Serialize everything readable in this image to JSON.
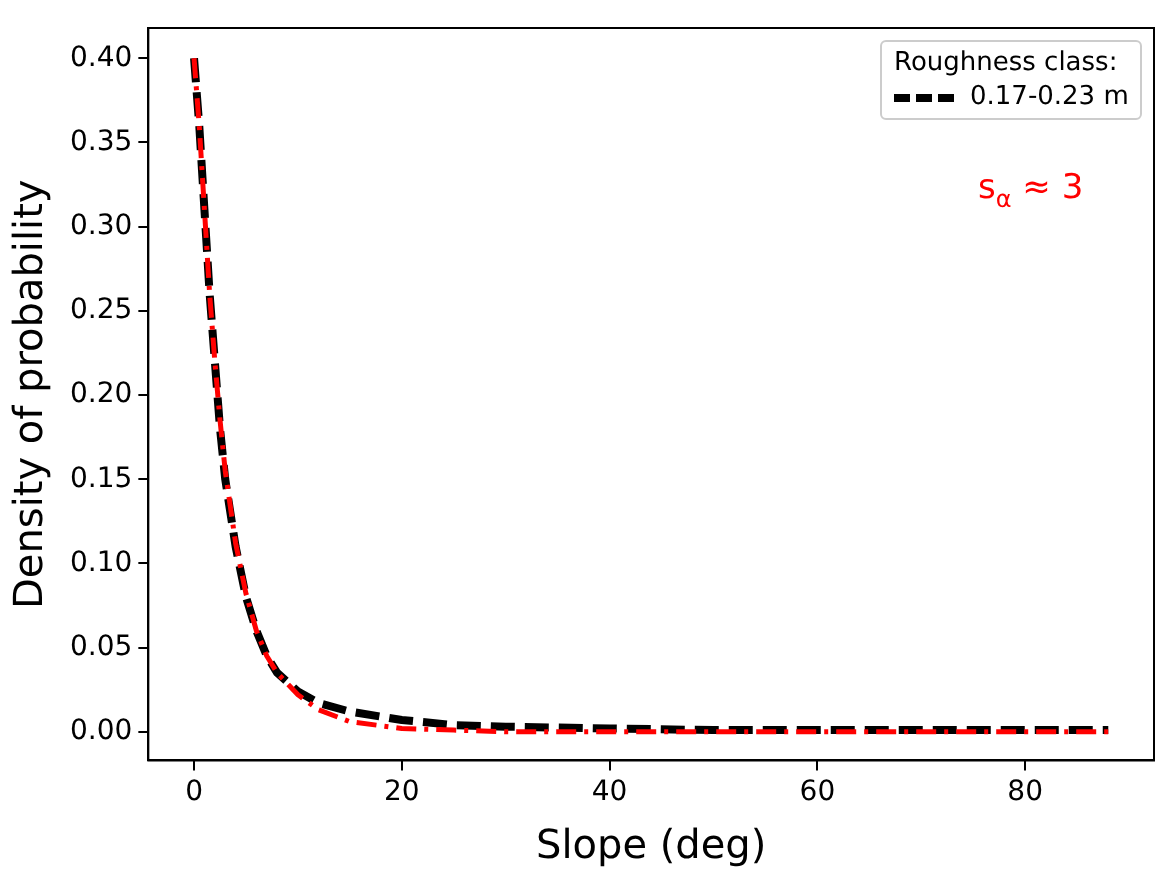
{
  "chart_data": {
    "type": "line",
    "xlabel": "Slope (deg)",
    "ylabel": "Density of probability",
    "legend_title": "Roughness class:",
    "legend": "top right",
    "grid": false,
    "marker": "none",
    "xlim": [
      -4.4,
      92.4
    ],
    "xticks": [
      0,
      20,
      40,
      60,
      80
    ],
    "ylim": [
      -0.017,
      0.418
    ],
    "yticks": [
      {
        "value": 0,
        "label": "0.00"
      },
      {
        "value": 0.05,
        "label": "0.05"
      },
      {
        "value": 0.1,
        "label": "0.10"
      },
      {
        "value": 0.15,
        "label": "0.15"
      },
      {
        "value": 0.2,
        "label": "0.20"
      },
      {
        "value": 0.25,
        "label": "0.25"
      },
      {
        "value": 0.3,
        "label": "0.30"
      },
      {
        "value": 0.35,
        "label": "0.35"
      },
      {
        "value": 0.4,
        "label": "0.40"
      }
    ],
    "annotations": [
      "s$_{α}$ ≈ 3"
    ],
    "series": [
      {
        "name": "0.17-0.23 m",
        "color": "#000000",
        "line_style": "dashed",
        "x": [
          0,
          0.5,
          1,
          1.5,
          2,
          2.5,
          3,
          4,
          5,
          6,
          7,
          8,
          10,
          12,
          15,
          20,
          25,
          30,
          40,
          50,
          60,
          70,
          88
        ],
        "values": [
          0.4,
          0.36,
          0.31,
          0.26,
          0.22,
          0.18,
          0.15,
          0.11,
          0.08,
          0.06,
          0.045,
          0.035,
          0.024,
          0.017,
          0.012,
          0.007,
          0.004,
          0.003,
          0.002,
          0.001,
          0.001,
          0.001,
          0.001
        ]
      },
      {
        "color": "#ff0000",
        "line_style": "dashdot",
        "x": [
          0,
          0.5,
          1,
          1.5,
          2,
          2.5,
          3,
          4,
          5,
          6,
          7,
          8,
          10,
          12,
          15,
          20,
          25,
          30,
          40,
          50,
          60,
          70,
          88
        ],
        "values": [
          0.4,
          0.36,
          0.31,
          0.26,
          0.22,
          0.185,
          0.155,
          0.112,
          0.082,
          0.06,
          0.045,
          0.035,
          0.022,
          0.013,
          0.006,
          0.002,
          0.001,
          0,
          0,
          0,
          0,
          0,
          0
        ]
      }
    ]
  }
}
